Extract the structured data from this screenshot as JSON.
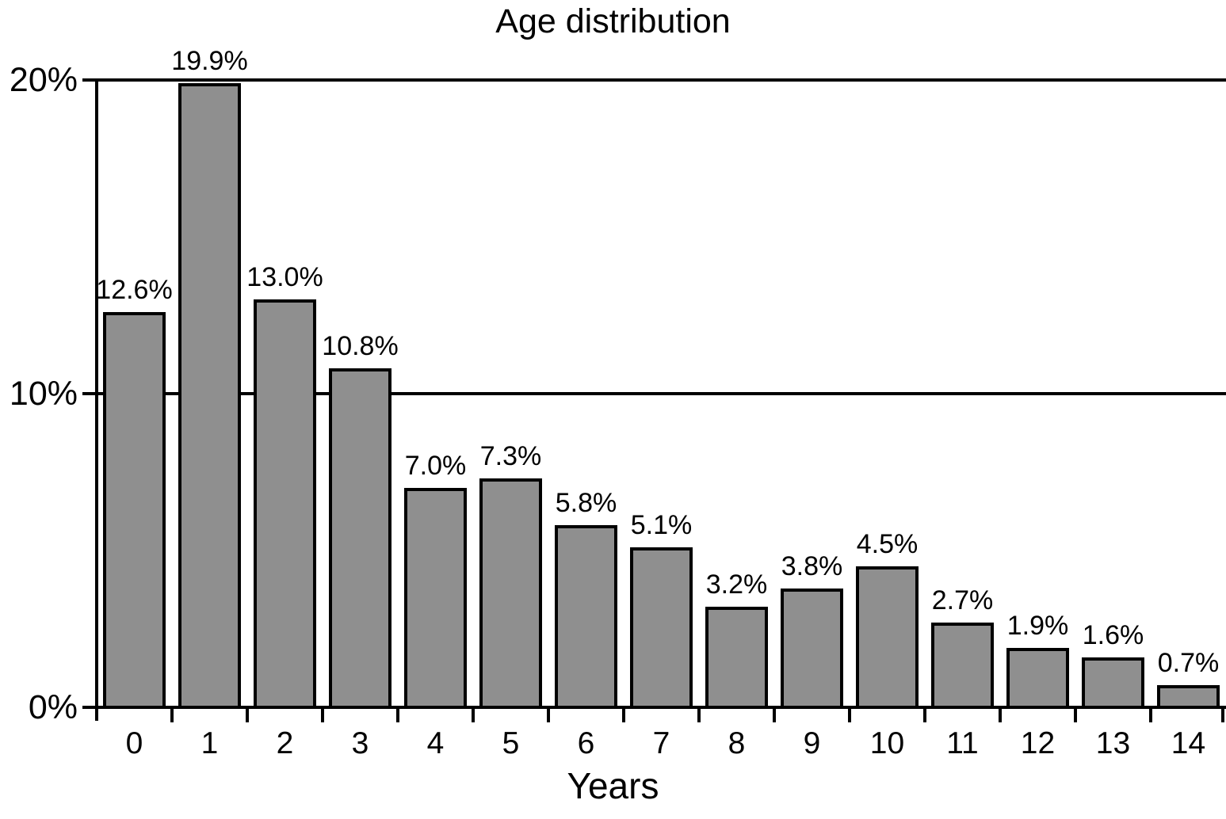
{
  "chart_data": {
    "type": "bar",
    "title": "Age distribution",
    "xlabel": "Years",
    "ylabel": "",
    "categories": [
      "0",
      "1",
      "2",
      "3",
      "4",
      "5",
      "6",
      "7",
      "8",
      "9",
      "10",
      "11",
      "12",
      "13",
      "14"
    ],
    "values": [
      12.6,
      19.9,
      13.0,
      10.8,
      7.0,
      7.3,
      5.8,
      5.1,
      3.2,
      3.8,
      4.5,
      2.7,
      1.9,
      1.6,
      0.7
    ],
    "bar_labels": [
      "12.6%",
      "19.9%",
      "13.0%",
      "10.8%",
      "7.0%",
      "7.3%",
      "5.8%",
      "5.1%",
      "3.2%",
      "3.8%",
      "4.5%",
      "2.7%",
      "1.9%",
      "1.6%",
      "0.7%"
    ],
    "y_ticks": [
      {
        "label": "0%",
        "value": 0
      },
      {
        "label": "10%",
        "value": 10
      },
      {
        "label": "20%",
        "value": 20
      }
    ],
    "ylim": [
      0,
      20
    ],
    "legend": "none",
    "grid": "horizontal",
    "colors": {
      "bar_fill": "#8f8f8f",
      "line": "#000000",
      "background": "#ffffff",
      "text": "#000000"
    }
  }
}
